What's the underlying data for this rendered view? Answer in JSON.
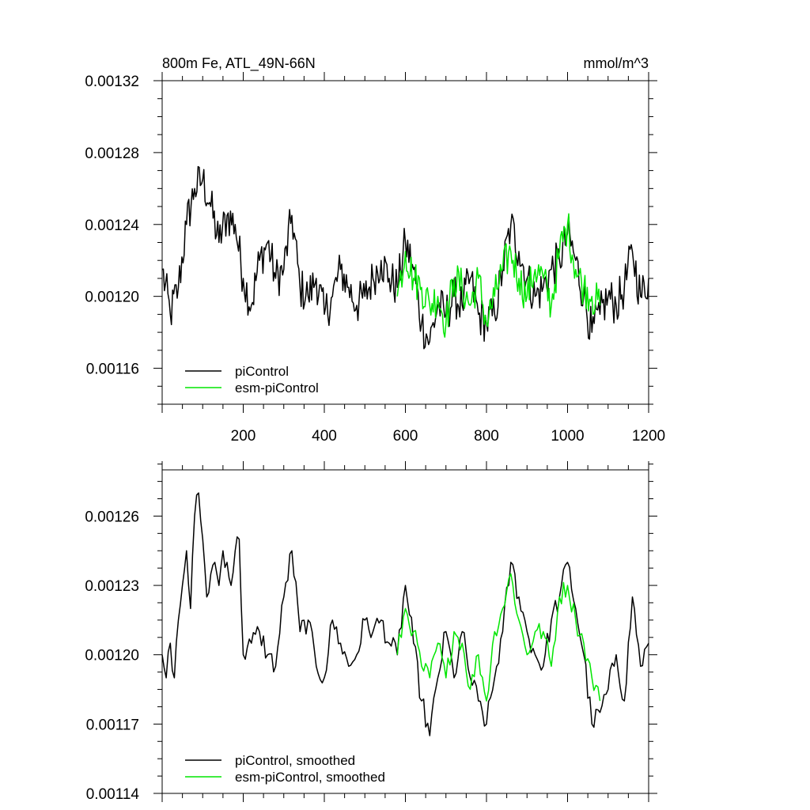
{
  "colors": {
    "picontrol": "#000000",
    "esm_picontrol": "#00e600",
    "axis": "#000000"
  },
  "chart_data": [
    {
      "type": "line",
      "title": "800m Fe, ATL_49N-66N",
      "units": "mmol/m^3",
      "xlim": [
        0,
        1200
      ],
      "ylim": [
        0.00114,
        0.00132
      ],
      "xticks": [
        200,
        400,
        600,
        800,
        1000,
        1200
      ],
      "yticks": [
        0.00116,
        0.0012,
        0.00124,
        0.00128,
        0.00132
      ],
      "ytick_labels": [
        "0.00116",
        "0.00120",
        "0.00124",
        "0.00128",
        "0.00132"
      ],
      "legend_position": "bottom-left",
      "series": [
        {
          "name": "piControl",
          "color": "#000000",
          "x": [
            0,
            20,
            40,
            60,
            80,
            100,
            120,
            140,
            160,
            180,
            200,
            220,
            240,
            260,
            280,
            300,
            320,
            340,
            360,
            380,
            400,
            420,
            440,
            460,
            480,
            500,
            520,
            540,
            560,
            580,
            600,
            620,
            640,
            660,
            680,
            700,
            720,
            740,
            760,
            780,
            800,
            820,
            840,
            860,
            880,
            900,
            920,
            940,
            960,
            980,
            1000,
            1020,
            1040,
            1060,
            1080,
            1100,
            1120,
            1140,
            1160,
            1180,
            1200
          ],
          "y": [
            0.001215,
            0.00119,
            0.001205,
            0.00124,
            0.00126,
            0.001265,
            0.00125,
            0.00123,
            0.001245,
            0.00124,
            0.00121,
            0.001195,
            0.00122,
            0.00123,
            0.00121,
            0.001215,
            0.001245,
            0.001205,
            0.0012,
            0.00121,
            0.00119,
            0.0012,
            0.001215,
            0.001205,
            0.001195,
            0.0012,
            0.00121,
            0.00122,
            0.00121,
            0.001205,
            0.00123,
            0.001215,
            0.001185,
            0.001175,
            0.001195,
            0.00119,
            0.0012,
            0.001195,
            0.00121,
            0.00119,
            0.001185,
            0.00119,
            0.001215,
            0.00124,
            0.001225,
            0.00121,
            0.0012,
            0.001205,
            0.001215,
            0.00122,
            0.001235,
            0.00122,
            0.0012,
            0.00118,
            0.00119,
            0.0012,
            0.001195,
            0.001205,
            0.001225,
            0.0012,
            0.00121
          ]
        },
        {
          "name": "esm-piControl",
          "color": "#00e600",
          "x": [
            580,
            600,
            620,
            640,
            660,
            680,
            700,
            720,
            740,
            760,
            780,
            800,
            820,
            840,
            860,
            880,
            900,
            920,
            940,
            960,
            980,
            1000,
            1020,
            1040,
            1060,
            1080
          ],
          "y": [
            0.0012,
            0.001225,
            0.00121,
            0.001205,
            0.001195,
            0.0012,
            0.001185,
            0.00121,
            0.001205,
            0.001195,
            0.00121,
            0.001185,
            0.0012,
            0.001215,
            0.001225,
            0.00121,
            0.0012,
            0.001215,
            0.00121,
            0.001195,
            0.001225,
            0.00124,
            0.001215,
            0.001205,
            0.0012,
            0.001195
          ]
        }
      ]
    },
    {
      "type": "line",
      "xlim": [
        0,
        1200
      ],
      "ylim": [
        0.00114,
        0.00128
      ],
      "yticks": [
        0.00114,
        0.00117,
        0.0012,
        0.00123,
        0.00126
      ],
      "ytick_labels": [
        "0.00114",
        "0.00117",
        "0.00120",
        "0.00123",
        "0.00126"
      ],
      "legend_position": "bottom-left",
      "series": [
        {
          "name": "piControl, smoothed",
          "color": "#000000",
          "x": [
            0,
            10,
            20,
            30,
            40,
            50,
            60,
            70,
            80,
            90,
            100,
            110,
            120,
            130,
            140,
            150,
            160,
            170,
            180,
            190,
            200,
            220,
            240,
            260,
            280,
            300,
            320,
            340,
            360,
            380,
            400,
            420,
            440,
            460,
            480,
            500,
            520,
            540,
            560,
            580,
            600,
            620,
            640,
            660,
            680,
            700,
            720,
            740,
            760,
            780,
            800,
            820,
            840,
            860,
            880,
            900,
            920,
            940,
            960,
            980,
            1000,
            1020,
            1040,
            1060,
            1080,
            1100,
            1120,
            1140,
            1160,
            1180,
            1200
          ],
          "y": [
            0.0012,
            0.00119,
            0.001205,
            0.00119,
            0.001215,
            0.00123,
            0.001245,
            0.00122,
            0.00126,
            0.00127,
            0.00125,
            0.001225,
            0.001235,
            0.00124,
            0.00123,
            0.001245,
            0.00124,
            0.00123,
            0.001245,
            0.00125,
            0.0012,
            0.001205,
            0.00121,
            0.0012,
            0.001195,
            0.001225,
            0.001245,
            0.00121,
            0.001215,
            0.001195,
            0.00119,
            0.001215,
            0.001205,
            0.001195,
            0.0012,
            0.001215,
            0.00121,
            0.001215,
            0.001205,
            0.0012,
            0.00123,
            0.001205,
            0.00118,
            0.001165,
            0.00119,
            0.00121,
            0.00119,
            0.00121,
            0.00119,
            0.00118,
            0.00117,
            0.00119,
            0.00121,
            0.00124,
            0.001225,
            0.00121,
            0.0012,
            0.001195,
            0.001215,
            0.001225,
            0.00124,
            0.00122,
            0.0012,
            0.00117,
            0.001175,
            0.001185,
            0.0012,
            0.00118,
            0.001225,
            0.001195,
            0.001205
          ]
        },
        {
          "name": "esm-piControl, smoothed",
          "color": "#00e600",
          "x": [
            580,
            600,
            620,
            640,
            660,
            680,
            700,
            720,
            740,
            760,
            780,
            800,
            820,
            840,
            860,
            880,
            900,
            920,
            940,
            960,
            980,
            1000,
            1020,
            1040,
            1060,
            1080
          ],
          "y": [
            0.0012,
            0.00122,
            0.00121,
            0.001195,
            0.00119,
            0.001205,
            0.00119,
            0.00121,
            0.001205,
            0.001185,
            0.0012,
            0.00118,
            0.00121,
            0.00122,
            0.001235,
            0.001215,
            0.0012,
            0.00121,
            0.00121,
            0.001195,
            0.001225,
            0.00123,
            0.001215,
            0.001205,
            0.00119,
            0.00118
          ]
        }
      ]
    }
  ]
}
